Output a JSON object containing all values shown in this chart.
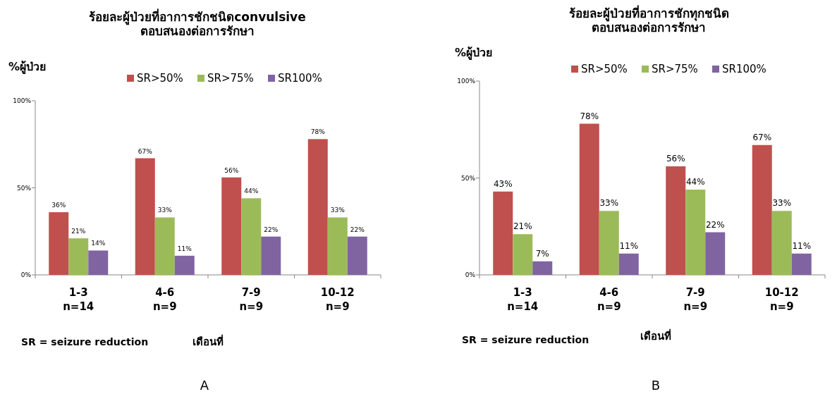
{
  "chart_data": [
    {
      "type": "bar",
      "title": "ร้อยละผู้ป่วยที่อาการชักชนิดconvulsive\nตอบสนองต่อการรักษา",
      "ylabel": "%ผู้ป่วย",
      "xlabel": "เดือนที่",
      "categories": [
        "1-3\nn=14",
        "4-6\nn=9",
        "7-9\nn=9",
        "10-12\nn=9"
      ],
      "ylim": [
        0,
        100
      ],
      "yticks": [
        {
          "value": 0,
          "label": "0%"
        },
        {
          "value": 50,
          "label": "50%"
        },
        {
          "value": 100,
          "label": "100%"
        }
      ],
      "legend": "top",
      "grid": false,
      "series": [
        {
          "name": "SR>50%",
          "color": "#c0504d",
          "values": [
            36,
            67,
            56,
            78
          ],
          "value_labels": [
            "36%",
            "67%",
            "56%",
            "78%"
          ]
        },
        {
          "name": "SR>75%",
          "color": "#9bbb59",
          "values": [
            21,
            33,
            44,
            33
          ],
          "value_labels": [
            "21%",
            "33%",
            "44%",
            "33%"
          ]
        },
        {
          "name": "SR100%",
          "color": "#8064a2",
          "values": [
            14,
            11,
            22,
            22
          ],
          "value_labels": [
            "14%",
            "11%",
            "22%",
            "22%"
          ]
        }
      ],
      "annotations": [
        "SR = seizure reduction",
        "A"
      ]
    },
    {
      "type": "bar",
      "title": "ร้อยละผู้ป่วยที่อาการชักทุกชนิด\nตอบสนองต่อการรักษา",
      "ylabel": "%ผู้ป่วย",
      "xlabel": "เดือนที่",
      "categories": [
        "1-3\nn=14",
        "4-6\nn=9",
        "7-9\nn=9",
        "10-12\nn=9"
      ],
      "ylim": [
        0,
        100
      ],
      "yticks": [
        {
          "value": 0,
          "label": "0%"
        },
        {
          "value": 50,
          "label": "50%"
        },
        {
          "value": 100,
          "label": "100%"
        }
      ],
      "legend": "top",
      "grid": false,
      "series": [
        {
          "name": "SR>50%",
          "color": "#c0504d",
          "values": [
            43,
            78,
            56,
            67
          ],
          "value_labels": [
            "43%",
            "78%",
            "56%",
            "67%"
          ]
        },
        {
          "name": "SR>75%",
          "color": "#9bbb59",
          "values": [
            21,
            33,
            44,
            33
          ],
          "value_labels": [
            "21%",
            "33%",
            "44%",
            "33%"
          ]
        },
        {
          "name": "SR100%",
          "color": "#8064a2",
          "values": [
            7,
            11,
            22,
            11
          ],
          "value_labels": [
            "7%",
            "11%",
            "22%",
            "11%"
          ]
        }
      ],
      "annotations": [
        "SR = seizure reduction",
        "B"
      ]
    }
  ]
}
